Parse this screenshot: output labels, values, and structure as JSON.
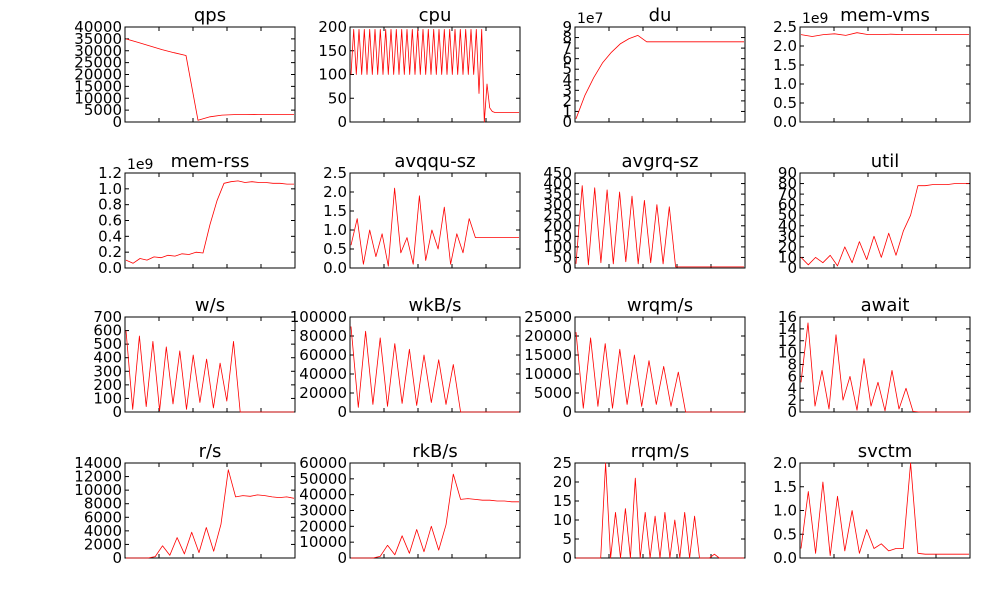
{
  "chart_data": [
    {
      "type": "line",
      "title": "qps",
      "ylim": [
        0,
        40000
      ],
      "yticks": [
        "0",
        "5000",
        "10000",
        "15000",
        "20000",
        "25000",
        "30000",
        "35000",
        "40000"
      ],
      "y_exponent": "",
      "series": [
        {
          "values": [
            35000,
            33500,
            32000,
            30500,
            29200,
            28000,
            700,
            2200,
            2900,
            3100,
            3150,
            3200,
            3200,
            3200,
            3200
          ]
        }
      ]
    },
    {
      "type": "line",
      "title": "cpu",
      "ylim": [
        0,
        200
      ],
      "yticks": [
        "0",
        "50",
        "100",
        "150",
        "200"
      ],
      "y_exponent": "",
      "series": [
        {
          "values": [
            100,
            195,
            100,
            195,
            100,
            195,
            100,
            195,
            100,
            195,
            100,
            195,
            100,
            195,
            100,
            195,
            100,
            195,
            100,
            195,
            100,
            195,
            100,
            195,
            100,
            195,
            100,
            195,
            100,
            195,
            100,
            195,
            100,
            195,
            100,
            195,
            100,
            195,
            100,
            195,
            100,
            195,
            100,
            195,
            100,
            195,
            100,
            195,
            60,
            195,
            0,
            80,
            30,
            22,
            20,
            20,
            20,
            20,
            20,
            20,
            20,
            20,
            20,
            20
          ]
        }
      ]
    },
    {
      "type": "line",
      "title": "du",
      "ylim": [
        0,
        9
      ],
      "yticks": [
        "0",
        "1",
        "2",
        "3",
        "4",
        "5",
        "6",
        "7",
        "8",
        "9"
      ],
      "y_exponent": "1e7",
      "series": [
        {
          "values": [
            0.3,
            2.5,
            4.2,
            5.6,
            6.6,
            7.4,
            7.9,
            8.2,
            7.6,
            7.6,
            7.6,
            7.6,
            7.6,
            7.6,
            7.6,
            7.6,
            7.6,
            7.6,
            7.6,
            7.6
          ]
        }
      ]
    },
    {
      "type": "line",
      "title": "mem-vms",
      "ylim": [
        0,
        2.5
      ],
      "yticks": [
        "0.0",
        "0.5",
        "1.0",
        "1.5",
        "2.0",
        "2.5"
      ],
      "y_exponent": "1e9",
      "series": [
        {
          "values": [
            2.3,
            2.25,
            2.3,
            2.32,
            2.28,
            2.35,
            2.3,
            2.3,
            2.31,
            2.3,
            2.3,
            2.3,
            2.3,
            2.3,
            2.3,
            2.3
          ]
        }
      ]
    },
    {
      "type": "line",
      "title": "mem-rss",
      "ylim": [
        0,
        1.2
      ],
      "yticks": [
        "0.0",
        "0.2",
        "0.4",
        "0.6",
        "0.8",
        "1.0",
        "1.2"
      ],
      "y_exponent": "1e9",
      "series": [
        {
          "values": [
            0.1,
            0.06,
            0.12,
            0.1,
            0.14,
            0.13,
            0.16,
            0.15,
            0.18,
            0.17,
            0.2,
            0.19,
            0.55,
            0.85,
            1.07,
            1.09,
            1.1,
            1.08,
            1.09,
            1.08,
            1.08,
            1.07,
            1.07,
            1.06,
            1.06
          ]
        }
      ]
    },
    {
      "type": "line",
      "title": "avqqu-sz",
      "ylim": [
        0,
        2.5
      ],
      "yticks": [
        "0.0",
        "0.5",
        "1.0",
        "1.5",
        "2.0",
        "2.5"
      ],
      "y_exponent": "",
      "series": [
        {
          "values": [
            0.6,
            1.3,
            0.1,
            1.0,
            0.3,
            0.9,
            0.05,
            2.1,
            0.4,
            0.8,
            0.1,
            1.9,
            0.2,
            1.0,
            0.5,
            1.6,
            0.1,
            0.9,
            0.4,
            1.3,
            0.8,
            0.8,
            0.8,
            0.8,
            0.8,
            0.8,
            0.8,
            0.8
          ]
        }
      ]
    },
    {
      "type": "line",
      "title": "avgrq-sz",
      "ylim": [
        0,
        450
      ],
      "yticks": [
        "0",
        "50",
        "100",
        "150",
        "200",
        "250",
        "300",
        "350",
        "400",
        "450"
      ],
      "y_exponent": "",
      "series": [
        {
          "values": [
            20,
            390,
            15,
            380,
            25,
            370,
            20,
            360,
            30,
            340,
            20,
            320,
            25,
            300,
            20,
            290,
            5,
            5,
            5,
            5,
            5,
            5,
            5,
            5,
            5,
            5,
            5,
            5
          ]
        }
      ]
    },
    {
      "type": "line",
      "title": "util",
      "ylim": [
        0,
        90
      ],
      "yticks": [
        "0",
        "10",
        "20",
        "30",
        "40",
        "50",
        "60",
        "70",
        "80",
        "90"
      ],
      "y_exponent": "",
      "series": [
        {
          "values": [
            10,
            3,
            10,
            5,
            12,
            2,
            20,
            5,
            25,
            8,
            30,
            10,
            33,
            12,
            35,
            50,
            78,
            78,
            79,
            79,
            79,
            80,
            80,
            80
          ]
        }
      ]
    },
    {
      "type": "line",
      "title": "w/s",
      "ylim": [
        0,
        700
      ],
      "yticks": [
        "0",
        "100",
        "200",
        "300",
        "400",
        "500",
        "600",
        "700"
      ],
      "y_exponent": "",
      "series": [
        {
          "values": [
            600,
            20,
            560,
            40,
            520,
            10,
            480,
            60,
            450,
            20,
            420,
            70,
            390,
            30,
            360,
            80,
            520,
            0,
            0,
            0,
            0,
            0,
            0,
            0,
            0,
            0
          ]
        }
      ]
    },
    {
      "type": "line",
      "title": "wkB/s",
      "ylim": [
        0,
        100000
      ],
      "yticks": [
        "0",
        "20000",
        "40000",
        "60000",
        "80000",
        "100000"
      ],
      "y_exponent": "",
      "series": [
        {
          "values": [
            90000,
            5000,
            85000,
            8000,
            78000,
            6000,
            72000,
            9000,
            66000,
            7000,
            60000,
            10000,
            55000,
            8000,
            50000,
            0,
            0,
            0,
            0,
            0,
            0,
            0,
            0,
            0
          ]
        }
      ]
    },
    {
      "type": "line",
      "title": "wrqm/s",
      "ylim": [
        0,
        25000
      ],
      "yticks": [
        "0",
        "5000",
        "10000",
        "15000",
        "20000",
        "25000"
      ],
      "y_exponent": "",
      "series": [
        {
          "values": [
            21000,
            1000,
            19500,
            1500,
            18000,
            1000,
            16500,
            2000,
            15000,
            1500,
            13500,
            2000,
            12000,
            1500,
            10500,
            0,
            0,
            0,
            0,
            0,
            0,
            0,
            0,
            0
          ]
        }
      ]
    },
    {
      "type": "line",
      "title": "await",
      "ylim": [
        0,
        16
      ],
      "yticks": [
        "0",
        "2",
        "4",
        "6",
        "8",
        "10",
        "12",
        "14",
        "16"
      ],
      "y_exponent": "",
      "series": [
        {
          "values": [
            5,
            15,
            1,
            7,
            0.5,
            13,
            2,
            6,
            0.3,
            9,
            1,
            5,
            0.2,
            7,
            0.5,
            4,
            0.1,
            0,
            0,
            0,
            0,
            0,
            0,
            0,
            0
          ]
        }
      ]
    },
    {
      "type": "line",
      "title": "r/s",
      "ylim": [
        0,
        14000
      ],
      "yticks": [
        "0",
        "2000",
        "4000",
        "6000",
        "8000",
        "10000",
        "12000",
        "14000"
      ],
      "y_exponent": "",
      "series": [
        {
          "values": [
            0,
            0,
            0,
            0,
            200,
            1800,
            400,
            3000,
            600,
            3800,
            800,
            4500,
            1000,
            5000,
            13000,
            9000,
            9200,
            9100,
            9300,
            9200,
            9000,
            8900,
            9000,
            8800
          ]
        }
      ]
    },
    {
      "type": "line",
      "title": "rkB/s",
      "ylim": [
        0,
        60000
      ],
      "yticks": [
        "0",
        "10000",
        "20000",
        "30000",
        "40000",
        "50000",
        "60000"
      ],
      "y_exponent": "",
      "series": [
        {
          "values": [
            0,
            0,
            0,
            0,
            1000,
            8000,
            2000,
            14000,
            3000,
            18000,
            4000,
            20000,
            5000,
            21000,
            53000,
            37000,
            37500,
            37000,
            36500,
            36500,
            36000,
            36000,
            35500,
            35500
          ]
        }
      ]
    },
    {
      "type": "line",
      "title": "rrqm/s",
      "ylim": [
        0,
        25
      ],
      "yticks": [
        "0",
        "5",
        "10",
        "15",
        "20",
        "25"
      ],
      "y_exponent": "",
      "series": [
        {
          "values": [
            0,
            0,
            0,
            0,
            0,
            0,
            25,
            0,
            12,
            0,
            13,
            0,
            21,
            0,
            12,
            0,
            11,
            0,
            12,
            0,
            10,
            0,
            12,
            0,
            11,
            0,
            0,
            0,
            1,
            0,
            0,
            0,
            0,
            0,
            0
          ]
        }
      ]
    },
    {
      "type": "line",
      "title": "svctm",
      "ylim": [
        0,
        2.0
      ],
      "yticks": [
        "0.0",
        "0.5",
        "1.0",
        "1.5",
        "2.0"
      ],
      "y_exponent": "",
      "series": [
        {
          "values": [
            0.2,
            1.4,
            0.1,
            1.6,
            0.05,
            1.3,
            0.15,
            1.0,
            0.1,
            0.6,
            0.2,
            0.3,
            0.15,
            0.2,
            0.2,
            2.0,
            0.1,
            0.08,
            0.08,
            0.08,
            0.08,
            0.08,
            0.08,
            0.08
          ]
        }
      ]
    }
  ]
}
